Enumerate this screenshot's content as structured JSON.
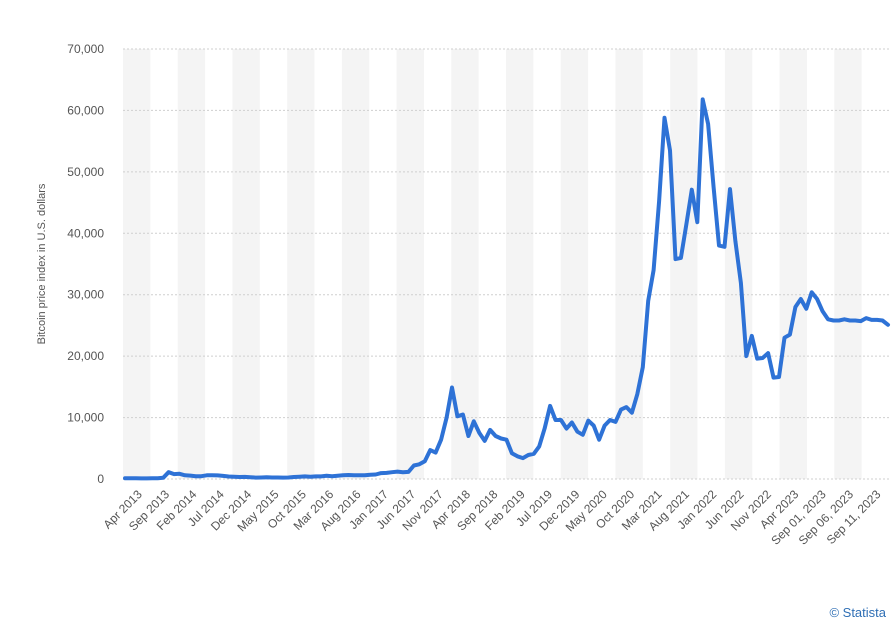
{
  "chart_data": {
    "type": "line",
    "title": "",
    "xlabel": "",
    "ylabel": "Bitcoin price index in U.S. dollars",
    "ylim": [
      0,
      70000
    ],
    "yticks": [
      "0",
      "10,000",
      "20,000",
      "30,000",
      "40,000",
      "50,000",
      "60,000",
      "70,000"
    ],
    "grid": true,
    "line_color": "#2e72d6",
    "x_tick_labels": [
      "Apr 2013",
      "Sep 2013",
      "Feb 2014",
      "Jul 2014",
      "Dec 2014",
      "May 2015",
      "Oct 2015",
      "Mar 2016",
      "Aug 2016",
      "Jan 2017",
      "Jun 2017",
      "Nov 2017",
      "Apr 2018",
      "Sep 2018",
      "Feb 2019",
      "Jul 2019",
      "Dec 2019",
      "May 2020",
      "Oct 2020",
      "Mar 2021",
      "Aug 2021",
      "Jan 2022",
      "Jun 2022",
      "Nov 2022",
      "Apr 2023",
      "Sep 01, 2023",
      "Sep 06, 2023",
      "Sep 11, 2023"
    ],
    "series": [
      {
        "values": [
          130,
          110,
          115,
          100,
          100,
          120,
          125,
          200,
          1100,
          800,
          850,
          600,
          550,
          450,
          450,
          600,
          620,
          580,
          500,
          400,
          380,
          320,
          350,
          280,
          230,
          240,
          280,
          240,
          250,
          230,
          250,
          320,
          370,
          430,
          380,
          420,
          420,
          520,
          450,
          530,
          600,
          650,
          600,
          620,
          600,
          700,
          740,
          960,
          1000,
          1100,
          1200,
          1100,
          1150,
          2200,
          2400,
          2900,
          4700,
          4300,
          6400,
          10000,
          14900,
          10200,
          10500,
          7000,
          9400,
          7500,
          6200,
          8000,
          7000,
          6600,
          6400,
          4200,
          3700,
          3400,
          3900,
          4100,
          5300,
          8200,
          11900,
          9600,
          9600,
          8200,
          9200,
          7700,
          7200,
          9500,
          8700,
          6400,
          8700,
          9600,
          9300,
          11300,
          11700,
          10800,
          13800,
          18200,
          29000,
          34000,
          45200,
          58800,
          53500,
          35800,
          36000,
          41500,
          47100,
          41800,
          61800,
          57800,
          47500,
          38000,
          37800,
          47200,
          38700,
          31900,
          20000,
          23300,
          19600,
          19700,
          20500,
          16500,
          16600,
          23000,
          23500,
          28000,
          29300,
          27700,
          30400,
          29300,
          27300,
          26000,
          25800,
          25800,
          26000,
          25800,
          25800,
          25700,
          26200,
          25900,
          25900,
          25800,
          25100
        ]
      }
    ]
  },
  "footer": {
    "credit": "© Statista"
  }
}
